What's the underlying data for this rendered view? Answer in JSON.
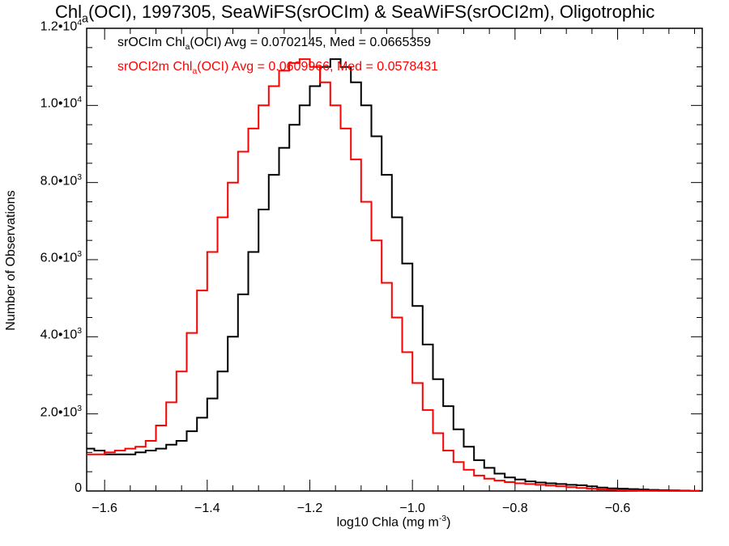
{
  "chart_data": {
    "type": "line",
    "title": "Chl_a(OCI), 1997305, SeaWiFS(srOCIm) & SeaWiFS(srOCI2m), Oligotrophic",
    "title_parts": {
      "pre": "Chl",
      "sub": "a",
      "post": "(OCI), 1997305, SeaWiFS(srOCIm) & SeaWiFS(srOCI2m), Oligotrophic"
    },
    "xlabel": "log10 Chla (mg m^-3)",
    "xlabel_parts": {
      "pre": "log10 Chla (mg m",
      "sup": "-3",
      "post": ")"
    },
    "ylabel": "Number of Observations",
    "xlim": [
      -1.635,
      -0.435
    ],
    "ylim": [
      0,
      12000
    ],
    "x_ticks": [
      {
        "value": -1.6,
        "label": "-1.6"
      },
      {
        "value": -1.4,
        "label": "-1.4"
      },
      {
        "value": -1.2,
        "label": "-1.2"
      },
      {
        "value": -1.0,
        "label": "-1.0"
      },
      {
        "value": -0.8,
        "label": "-0.8"
      },
      {
        "value": -0.6,
        "label": "-0.6"
      }
    ],
    "y_ticks": [
      {
        "value": 0,
        "mantissa": "0",
        "exp": ""
      },
      {
        "value": 2000,
        "mantissa": "2.0•10",
        "exp": "3"
      },
      {
        "value": 4000,
        "mantissa": "4.0•10",
        "exp": "3"
      },
      {
        "value": 6000,
        "mantissa": "6.0•10",
        "exp": "3"
      },
      {
        "value": 8000,
        "mantissa": "8.0•10",
        "exp": "3"
      },
      {
        "value": 10000,
        "mantissa": "1.0•10",
        "exp": "4"
      },
      {
        "value": 12000,
        "mantissa": "1.2•10",
        "exp": "4"
      }
    ],
    "series": [
      {
        "name": "srOCIm",
        "color": "#000000",
        "x": [
          -1.635,
          -1.62,
          -1.6,
          -1.58,
          -1.56,
          -1.54,
          -1.52,
          -1.5,
          -1.48,
          -1.46,
          -1.44,
          -1.42,
          -1.4,
          -1.38,
          -1.36,
          -1.34,
          -1.32,
          -1.3,
          -1.28,
          -1.26,
          -1.24,
          -1.22,
          -1.2,
          -1.18,
          -1.16,
          -1.14,
          -1.12,
          -1.1,
          -1.08,
          -1.06,
          -1.04,
          -1.02,
          -1.0,
          -0.98,
          -0.96,
          -0.94,
          -0.92,
          -0.9,
          -0.88,
          -0.86,
          -0.84,
          -0.82,
          -0.8,
          -0.78,
          -0.76,
          -0.74,
          -0.72,
          -0.7,
          -0.68,
          -0.66,
          -0.64,
          -0.62,
          -0.6,
          -0.58,
          -0.56,
          -0.54,
          -0.52,
          -0.5,
          -0.48,
          -0.46,
          -0.44
        ],
        "y": [
          1100,
          1050,
          950,
          950,
          950,
          1000,
          1050,
          1100,
          1200,
          1300,
          1550,
          1900,
          2400,
          3100,
          4000,
          5100,
          6200,
          7300,
          8200,
          8900,
          9500,
          10000,
          10500,
          11000,
          11200,
          11000,
          10600,
          10000,
          9200,
          8200,
          7100,
          5900,
          4800,
          3800,
          2900,
          2200,
          1600,
          1150,
          800,
          600,
          450,
          350,
          300,
          250,
          220,
          200,
          180,
          160,
          150,
          120,
          90,
          70,
          60,
          50,
          40,
          30,
          20,
          15,
          10,
          5,
          3
        ]
      },
      {
        "name": "srOCI2m",
        "color": "#ff0000",
        "x": [
          -1.635,
          -1.62,
          -1.6,
          -1.58,
          -1.56,
          -1.54,
          -1.52,
          -1.5,
          -1.48,
          -1.46,
          -1.44,
          -1.42,
          -1.4,
          -1.38,
          -1.36,
          -1.34,
          -1.32,
          -1.3,
          -1.28,
          -1.26,
          -1.24,
          -1.22,
          -1.2,
          -1.18,
          -1.16,
          -1.14,
          -1.12,
          -1.1,
          -1.08,
          -1.06,
          -1.04,
          -1.02,
          -1.0,
          -0.98,
          -0.96,
          -0.94,
          -0.92,
          -0.9,
          -0.88,
          -0.86,
          -0.84,
          -0.82,
          -0.8,
          -0.78,
          -0.76,
          -0.74,
          -0.72,
          -0.7,
          -0.68,
          -0.66,
          -0.64,
          -0.62,
          -0.6,
          -0.58,
          -0.56,
          -0.54,
          -0.52,
          -0.5,
          -0.48,
          -0.46,
          -0.44
        ],
        "y": [
          950,
          950,
          1000,
          1050,
          1100,
          1150,
          1300,
          1700,
          2300,
          3100,
          4100,
          5200,
          6200,
          7100,
          8000,
          8800,
          9400,
          10000,
          10500,
          10900,
          11100,
          11200,
          11000,
          10600,
          10000,
          9400,
          8600,
          7500,
          6500,
          5400,
          4500,
          3600,
          2800,
          2100,
          1500,
          1050,
          750,
          550,
          400,
          320,
          270,
          230,
          200,
          180,
          160,
          140,
          120,
          100,
          80,
          60,
          40,
          30,
          20,
          15,
          10,
          8,
          5,
          3,
          2,
          1,
          0
        ]
      }
    ],
    "legend": [
      {
        "pre": "srOCIm Chl",
        "sub": "a",
        "post": "(OCI) Avg = 0.0702145, Med = 0.0665359",
        "color": "#000000"
      },
      {
        "pre": "srOCI2m Chl",
        "sub": "a",
        "post": "(OCI) Avg = 0.0609966, Med = 0.0578431",
        "color": "#ff0000"
      }
    ]
  }
}
